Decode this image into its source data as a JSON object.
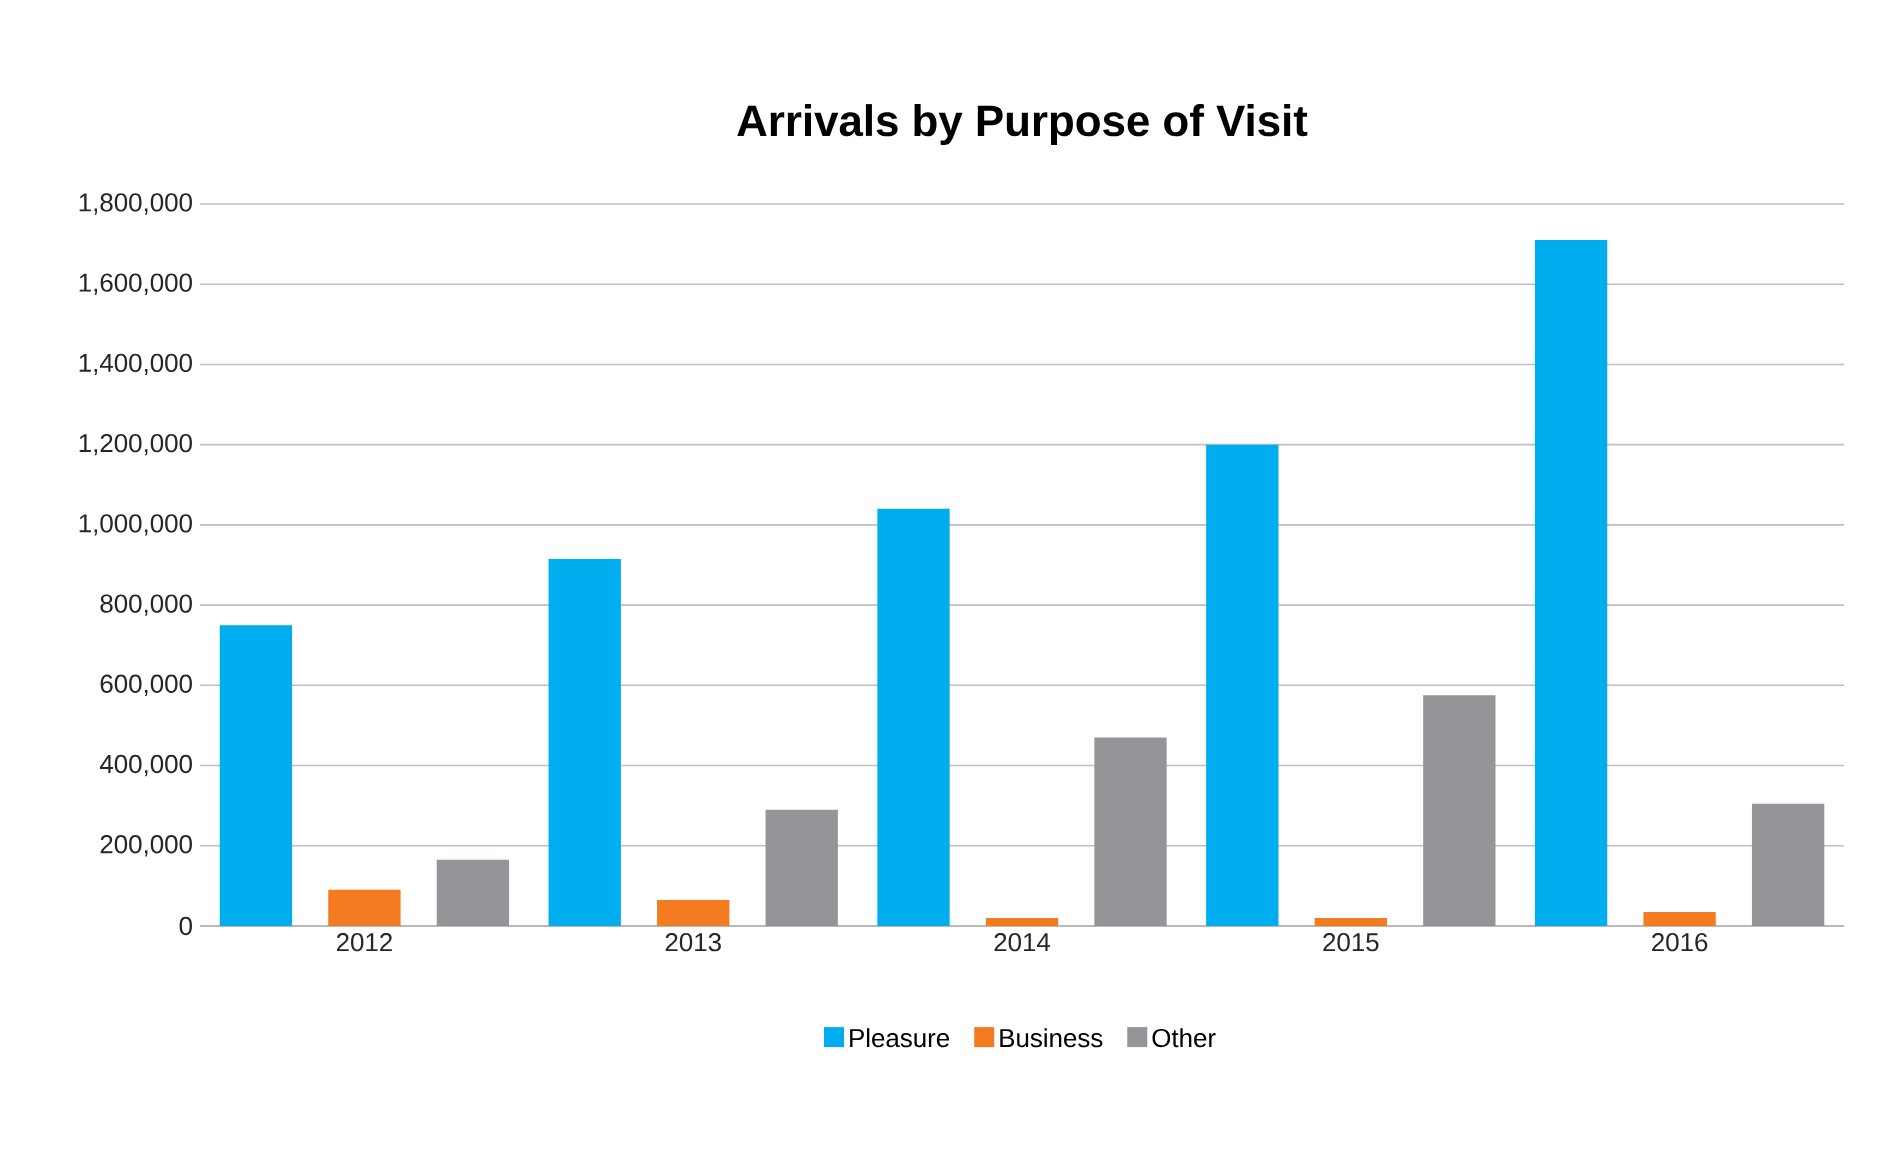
{
  "chart_data": {
    "type": "bar",
    "title": "Arrivals by Purpose of Visit",
    "categories": [
      "2012",
      "2013",
      "2014",
      "2015",
      "2016"
    ],
    "series": [
      {
        "name": "Pleasure",
        "color": "#00aeef",
        "values": [
          750000,
          915000,
          1040000,
          1200000,
          1710000
        ]
      },
      {
        "name": "Business",
        "color": "#f47b20",
        "values": [
          90000,
          65000,
          20000,
          20000,
          35000
        ]
      },
      {
        "name": "Other",
        "color": "#939598",
        "values": [
          165000,
          290000,
          470000,
          575000,
          305000
        ]
      }
    ],
    "ylim": [
      0,
      1800000
    ],
    "yticks": [
      {
        "value": 0,
        "label": "0"
      },
      {
        "value": 200000,
        "label": "200,000"
      },
      {
        "value": 400000,
        "label": "400,000"
      },
      {
        "value": 600000,
        "label": "600,000"
      },
      {
        "value": 800000,
        "label": "800,000"
      },
      {
        "value": 1000000,
        "label": "1,000,000"
      },
      {
        "value": 1200000,
        "label": "1,200,000"
      },
      {
        "value": 1400000,
        "label": "1,400,000"
      },
      {
        "value": 1600000,
        "label": "1,600,000"
      },
      {
        "value": 1800000,
        "label": "1,800,000"
      }
    ],
    "grid": "y",
    "legend": "bottom"
  }
}
